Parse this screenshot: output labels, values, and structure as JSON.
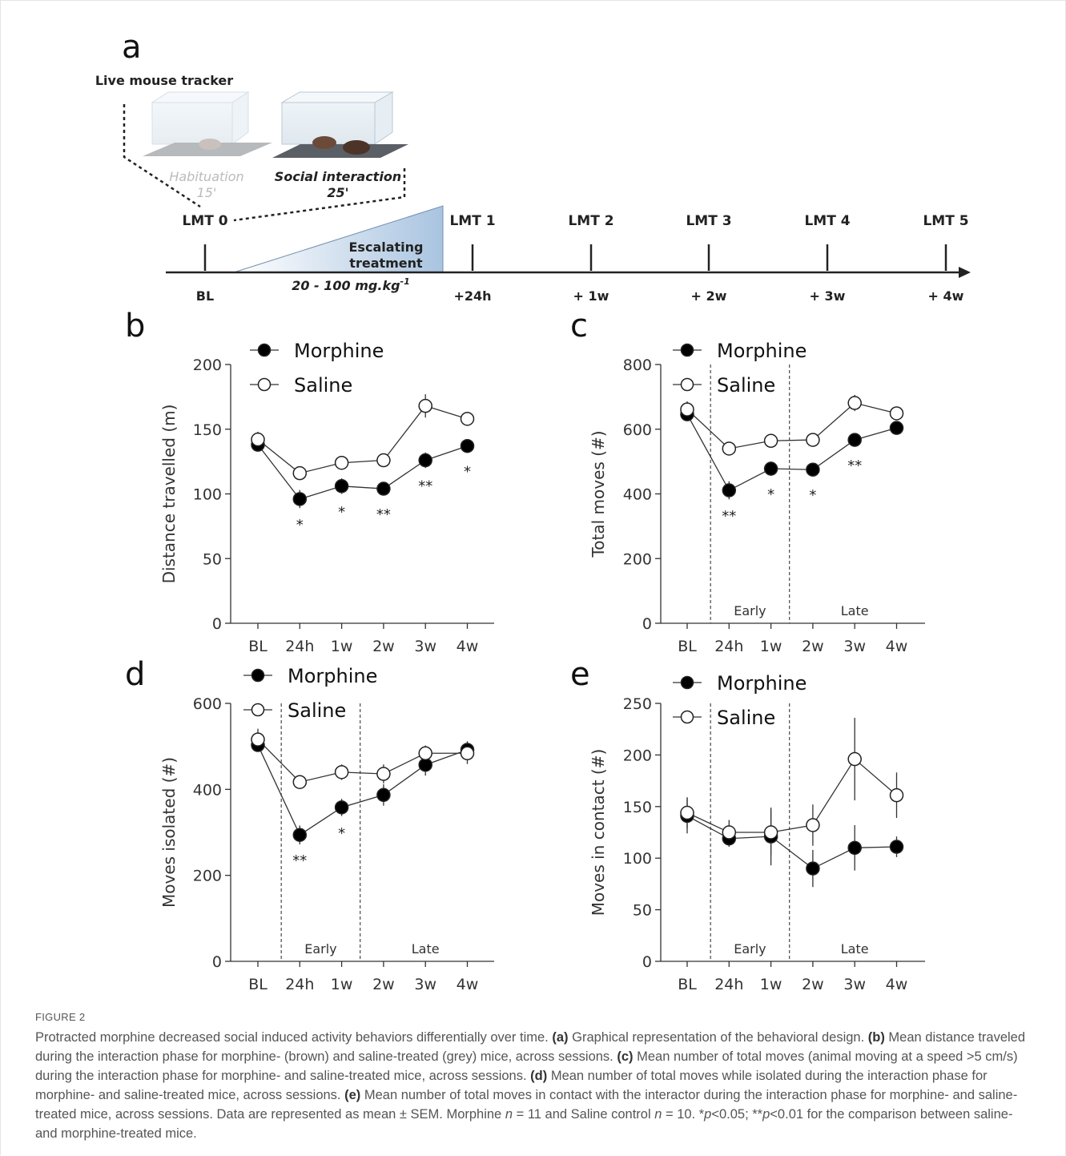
{
  "panel_a": {
    "label": "a",
    "title": "Live mouse tracker",
    "phases": [
      {
        "name": "Habituation",
        "duration": "15'"
      },
      {
        "name": "Social interaction",
        "duration": "25'"
      }
    ],
    "sessions": [
      "LMT 0",
      "LMT 1",
      "LMT 2",
      "LMT 3",
      "LMT 4",
      "LMT 5"
    ],
    "timepoints": [
      "BL",
      "+24h",
      "+ 1w",
      "+ 2w",
      "+ 3w",
      "+ 4w"
    ],
    "treatment": [
      "Escalating",
      "treatment"
    ],
    "dose": "20 - 100 mg.kg",
    "dose_exponent": "-1"
  },
  "chart_data": [
    {
      "type": "line",
      "panel": "b",
      "ylabel": "Distance travelled (m)",
      "categories": [
        "BL",
        "24h",
        "1w",
        "2w",
        "3w",
        "4w"
      ],
      "series": [
        {
          "name": "Morphine",
          "color": "#000000",
          "values": [
            138,
            96,
            106,
            104,
            126,
            137
          ],
          "errors": [
            5,
            7,
            6,
            4,
            6,
            5
          ]
        },
        {
          "name": "Saline",
          "color": "#ffffff",
          "values": [
            142,
            116,
            124,
            126,
            168,
            158
          ],
          "errors": [
            6,
            4,
            3,
            3,
            9,
            4
          ]
        }
      ],
      "annotations": [
        null,
        "*",
        "*",
        "**",
        "**",
        "*"
      ],
      "ylim": [
        0,
        200
      ],
      "yticks": [
        0,
        50,
        100,
        150,
        200
      ],
      "legend": "upper left"
    },
    {
      "type": "line",
      "panel": "c",
      "ylabel": "Total moves (#)",
      "categories": [
        "BL",
        "24h",
        "1w",
        "2w",
        "3w",
        "4w"
      ],
      "series": [
        {
          "name": "Morphine",
          "color": "#000000",
          "values": [
            646,
            411,
            478,
            475,
            567,
            604
          ],
          "errors": [
            15,
            28,
            22,
            20,
            20,
            18
          ]
        },
        {
          "name": "Saline",
          "color": "#ffffff",
          "values": [
            661,
            540,
            564,
            567,
            681,
            649
          ],
          "errors": [
            25,
            18,
            18,
            15,
            25,
            15
          ]
        }
      ],
      "annotations": [
        null,
        "**",
        "*",
        "*",
        "**",
        null
      ],
      "phase_labels": [
        "Early",
        "Late"
      ],
      "ylim": [
        0,
        800
      ],
      "yticks": [
        0,
        200,
        400,
        600,
        800
      ],
      "legend": "upper left"
    },
    {
      "type": "line",
      "panel": "d",
      "ylabel": "Moves isolated (#)",
      "categories": [
        "BL",
        "24h",
        "1w",
        "2w",
        "3w",
        "4w"
      ],
      "series": [
        {
          "name": "Morphine",
          "color": "#000000",
          "values": [
            503,
            294,
            358,
            387,
            457,
            492
          ],
          "errors": [
            15,
            22,
            20,
            25,
            25,
            20
          ]
        },
        {
          "name": "Saline",
          "color": "#ffffff",
          "values": [
            516,
            417,
            440,
            436,
            484,
            484
          ],
          "errors": [
            25,
            12,
            18,
            22,
            18,
            25
          ]
        }
      ],
      "annotations": [
        null,
        "**",
        "*",
        null,
        null,
        null
      ],
      "phase_labels": [
        "Early",
        "Late"
      ],
      "ylim": [
        0,
        600
      ],
      "yticks": [
        0,
        200,
        400,
        600
      ],
      "legend": "upper left"
    },
    {
      "type": "line",
      "panel": "e",
      "ylabel": "Moves in contact (#)",
      "categories": [
        "BL",
        "24h",
        "1w",
        "2w",
        "3w",
        "4w"
      ],
      "series": [
        {
          "name": "Morphine",
          "color": "#000000",
          "values": [
            141,
            119,
            121,
            90,
            110,
            111
          ],
          "errors": [
            17,
            8,
            28,
            18,
            22,
            10
          ]
        },
        {
          "name": "Saline",
          "color": "#ffffff",
          "values": [
            144,
            125,
            125,
            132,
            196,
            161
          ],
          "errors": [
            15,
            12,
            22,
            20,
            40,
            22
          ]
        }
      ],
      "annotations": [
        null,
        null,
        null,
        null,
        null,
        null
      ],
      "phase_labels": [
        "Early",
        "Late"
      ],
      "ylim": [
        0,
        250
      ],
      "yticks": [
        0,
        50,
        100,
        150,
        200,
        250
      ],
      "legend": "upper left"
    }
  ],
  "caption": {
    "label": "FIGURE 2",
    "parts": [
      "Protracted morphine decreased social induced activity behaviors differentially over time. ",
      "(a)",
      " Graphical representation of the behavioral design. ",
      "(b)",
      " Mean distance traveled during the interaction phase for morphine- (brown) and saline-treated (grey) mice, across sessions. ",
      "(c)",
      " Mean number of total moves (animal moving at a speed >5 cm/s) during the interaction phase for morphine- and saline-treated mice, across sessions. ",
      "(d)",
      " Mean number of total moves while isolated during the interaction phase for morphine- and saline-treated mice, across sessions. ",
      "(e)",
      " Mean number of total moves in contact with the interactor during the interaction phase for morphine- and saline-treated mice, across sessions. Data are represented as mean ± SEM. Morphine ",
      "n",
      " = 11 and Saline control ",
      "n",
      " = 10. *",
      "p",
      "<0.05; **",
      "p",
      "<0.01 for the comparison between saline- and morphine-treated mice."
    ]
  }
}
